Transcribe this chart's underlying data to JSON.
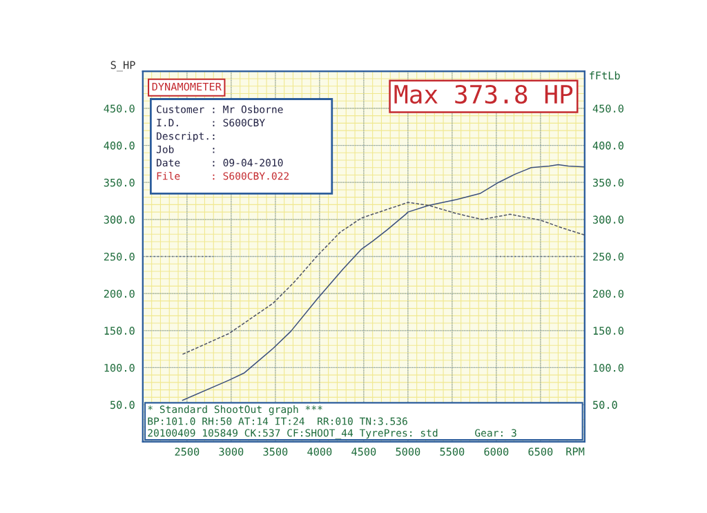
{
  "chart_data": {
    "type": "line",
    "title": "DYNAMOMETER",
    "ylabel": "S_HP",
    "y2label": "fFtLb",
    "xlabel": "RPM",
    "xlim": [
      2000,
      7000
    ],
    "xticks": [
      2500,
      3000,
      3500,
      4000,
      4500,
      5000,
      5500,
      6000,
      6500
    ],
    "ylim": [
      0,
      500
    ],
    "yticks": [
      {
        "value": 50,
        "label": "50.0"
      },
      {
        "value": 100,
        "label": "100.0"
      },
      {
        "value": 150,
        "label": "150.0"
      },
      {
        "value": 200,
        "label": "200.0"
      },
      {
        "value": 250,
        "label": "250.0"
      },
      {
        "value": 300,
        "label": "300.0"
      },
      {
        "value": 350,
        "label": "350.0"
      },
      {
        "value": 400,
        "label": "400.0"
      },
      {
        "value": 450,
        "label": "450.0"
      }
    ],
    "y2lim": [
      0,
      500
    ],
    "y2ticks": [
      {
        "value": 50,
        "label": "50.0"
      },
      {
        "value": 100,
        "label": "100.0"
      },
      {
        "value": 150,
        "label": "150.0"
      },
      {
        "value": 200,
        "label": "200.0"
      },
      {
        "value": 250,
        "label": "250.0"
      },
      {
        "value": 300,
        "label": "300.0"
      },
      {
        "value": 350,
        "label": "350.0"
      },
      {
        "value": 400,
        "label": "400.0"
      },
      {
        "value": 450,
        "label": "450.0"
      }
    ],
    "grid": true,
    "series": [
      {
        "color": "#3b4f7c",
        "line_style": "solid",
        "axis": "y",
        "x": [
          2450,
          2975,
          3150,
          3475,
          3675,
          3975,
          4265,
          4475,
          4605,
          4765,
          4975,
          5000,
          5235,
          5550,
          5815,
          6025,
          6210,
          6395,
          6600,
          6700,
          6815,
          7000
        ],
        "values": [
          56,
          83,
          93,
          126,
          149,
          193,
          233,
          260,
          271,
          286,
          307,
          310,
          319,
          327,
          335,
          350,
          361,
          370,
          372,
          374,
          372,
          371
        ]
      },
      {
        "color": "#4e5468",
        "line_style": "dashed",
        "axis": "y2",
        "x": [
          2450,
          2975,
          3475,
          3710,
          3975,
          4235,
          4475,
          4975,
          5000,
          5235,
          5550,
          5840,
          6155,
          6500,
          6760,
          7000
        ],
        "values": [
          118,
          146,
          187,
          215,
          251,
          283,
          302,
          322,
          323,
          319,
          308,
          300,
          307,
          299,
          288,
          279
        ]
      },
      {
        "color": "#4e5468",
        "line_style": "dotted",
        "axis": "y",
        "x": [
          2000,
          2800
        ],
        "values": [
          250,
          250
        ]
      },
      {
        "color": "#4e5468",
        "line_style": "dotted",
        "axis": "y",
        "x": [
          6000,
          7000
        ],
        "values": [
          250,
          250
        ]
      }
    ],
    "annotations": [
      "Max 373.8 HP",
      "Customer : Mr Osborne",
      "I.D.     : S600CBY",
      "Descript.:",
      "Job      :",
      "Date     : 09-04-2010",
      "File     : S600CBY.022",
      "* Standard ShootOut graph ***",
      "BP:101.0 RH:50 AT:14 IT:24  RR:010 TN:3.536",
      "20100409 105849 CK:537 CF:SHOOT_44 TyrePres: std      Gear: 3"
    ]
  }
}
